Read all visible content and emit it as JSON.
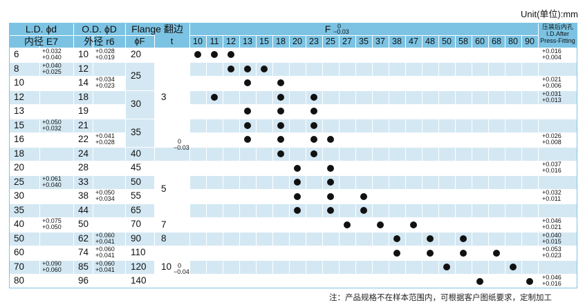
{
  "unit_label": "Unit(单位):mm",
  "footnote": "注：产品规格不在样本范围内，可根据客户图纸要求，定制加工",
  "header": {
    "id_line1": "L.D. ϕd",
    "id_line2": "内径 E7",
    "od_line1": "O.D. ϕD",
    "od_line2": "外径 r6",
    "flange": "Flange 翻边",
    "phi_f": "ϕF",
    "t": "t",
    "f_label": "F",
    "f_tol_upper": "0",
    "f_tol_lower": "−0.03",
    "after_line1": "压装后内孔",
    "after_line2": "I.D.After",
    "after_line3": "Press-Fitting"
  },
  "f_columns": [
    "10",
    "11",
    "12",
    "13",
    "15",
    "18",
    "20",
    "23",
    "25",
    "27",
    "35",
    "37",
    "38",
    "47",
    "48",
    "50",
    "58",
    "60",
    "68",
    "80",
    "90"
  ],
  "rows": [
    {
      "d": "6",
      "D": "10",
      "F": "20",
      "dots": [
        0,
        1,
        2
      ]
    },
    {
      "d": "8",
      "D": "12",
      "F": "",
      "dots": [
        2,
        3,
        4
      ]
    },
    {
      "d": "10",
      "D": "14",
      "F": "",
      "dots": [
        3,
        5
      ]
    },
    {
      "d": "12",
      "D": "18",
      "F": "",
      "dots": [
        1,
        5,
        7
      ]
    },
    {
      "d": "13",
      "D": "19",
      "F": "",
      "dots": [
        3,
        5,
        7
      ]
    },
    {
      "d": "15",
      "D": "21",
      "F": "",
      "dots": [
        3,
        5,
        7
      ]
    },
    {
      "d": "16",
      "D": "22",
      "F": "",
      "dots": [
        3,
        5,
        7,
        8
      ]
    },
    {
      "d": "18",
      "D": "24",
      "F": "40",
      "dots": [
        5,
        7
      ]
    },
    {
      "d": "20",
      "D": "28",
      "F": "45",
      "dots": [
        6,
        8
      ]
    },
    {
      "d": "25",
      "D": "33",
      "F": "50",
      "dots": [
        6,
        8
      ]
    },
    {
      "d": "30",
      "D": "38",
      "F": "55",
      "dots": [
        6,
        8,
        10
      ]
    },
    {
      "d": "35",
      "D": "44",
      "F": "65",
      "dots": [
        6,
        8,
        10
      ]
    },
    {
      "d": "40",
      "D": "50",
      "F": "70",
      "dots": [
        9,
        11,
        13
      ]
    },
    {
      "d": "50",
      "D": "62",
      "F": "90",
      "dots": [
        12,
        14,
        16
      ]
    },
    {
      "d": "60",
      "D": "74",
      "F": "110",
      "dots": [
        12,
        14,
        16,
        18
      ]
    },
    {
      "d": "70",
      "D": "85",
      "F": "120",
      "dots": [
        15,
        19
      ]
    },
    {
      "d": "80",
      "D": "96",
      "F": "140",
      "dots": [
        17,
        20
      ]
    }
  ],
  "flange_merged": [
    {
      "start": 1,
      "span": 2,
      "value": "25"
    },
    {
      "start": 3,
      "span": 2,
      "value": "30"
    },
    {
      "start": 5,
      "span": 2,
      "value": "35"
    }
  ],
  "t_groups": [
    {
      "start": 0,
      "span": 7,
      "value": "3"
    },
    {
      "start": 8,
      "span": 4,
      "value": "5"
    },
    {
      "start": 12,
      "span": 1,
      "value": "7"
    },
    {
      "start": 13,
      "span": 1,
      "value": "8"
    },
    {
      "start": 14,
      "span": 3,
      "value": "10"
    }
  ],
  "t_tolerances": [
    {
      "row": 6,
      "upper": "0",
      "lower": "−0.03"
    },
    {
      "row": 15,
      "upper": "0",
      "lower": "−0.04"
    }
  ],
  "id_tolerances": [
    {
      "row": 0,
      "upper": "+0.032",
      "lower": "+0.040"
    },
    {
      "row": 1,
      "upper": "+0.040",
      "lower": "+0.025"
    },
    {
      "row": 5,
      "upper": "+0.050",
      "lower": "+0.032"
    },
    {
      "row": 9,
      "upper": "+0.061",
      "lower": "+0.040"
    },
    {
      "row": 12,
      "upper": "+0.075",
      "lower": "+0.050"
    },
    {
      "row": 15,
      "upper": "+0.090",
      "lower": "+0.060"
    }
  ],
  "od_tolerances": [
    {
      "row": 0,
      "upper": "+0.028",
      "lower": "+0.019"
    },
    {
      "row": 2,
      "upper": "+0.034",
      "lower": "+0.023"
    },
    {
      "row": 6,
      "upper": "+0.041",
      "lower": "+0.028"
    },
    {
      "row": 10,
      "upper": "+0.050",
      "lower": "+0.034"
    },
    {
      "row": 13,
      "upper": "+0.060",
      "lower": "+0.041"
    },
    {
      "row": 14,
      "upper": "+0.060",
      "lower": "+0.041"
    },
    {
      "row": 15,
      "upper": "+0.060",
      "lower": "+0.041"
    }
  ],
  "after_tolerances": [
    {
      "row": 0,
      "upper": "+0.016",
      "lower": "+0.004"
    },
    {
      "row": 2,
      "upper": "+0.021",
      "lower": "+0.006"
    },
    {
      "row": 3,
      "upper": "+0.031",
      "lower": "+0.013"
    },
    {
      "row": 6,
      "upper": "+0.026",
      "lower": "+0.008"
    },
    {
      "row": 8,
      "upper": "+0.037",
      "lower": "+0.016"
    },
    {
      "row": 10,
      "upper": "+0.032",
      "lower": "+0.011"
    },
    {
      "row": 12,
      "upper": "+0.046",
      "lower": "+0.021"
    },
    {
      "row": 13,
      "upper": "+0.040",
      "lower": "+0.015"
    },
    {
      "row": 14,
      "upper": "+0.053",
      "lower": "+0.023"
    },
    {
      "row": 16,
      "upper": "+0.046",
      "lower": "+0.016"
    }
  ]
}
